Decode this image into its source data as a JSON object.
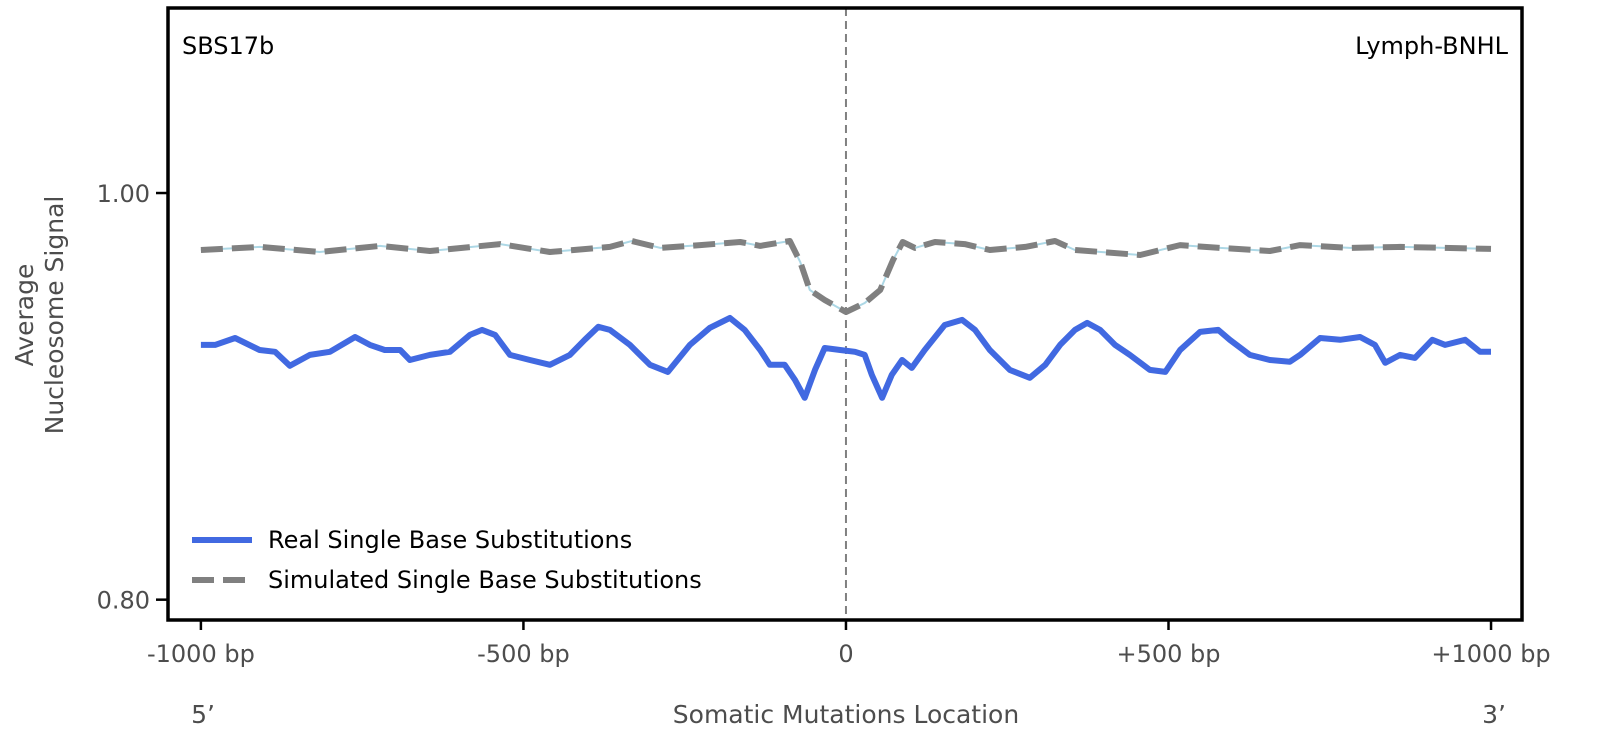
{
  "chart_data": {
    "type": "line",
    "title_left": "SBS17b",
    "title_right": "Lymph-BNHL",
    "xlabel": "Somatic Mutations Location",
    "ylabel": [
      "Average",
      "Nucleosome Signal"
    ],
    "xlim": [
      -1051,
      1048
    ],
    "ylim": [
      0.79,
      1.091
    ],
    "x_ticks": [
      {
        "value": -1000,
        "label": "-1000 bp"
      },
      {
        "value": -500,
        "label": "-500 bp"
      },
      {
        "value": 0,
        "label": "0"
      },
      {
        "value": 500,
        "label": "+500 bp"
      },
      {
        "value": 1000,
        "label": "+1000 bp"
      }
    ],
    "y_ticks": [
      {
        "value": 1.0,
        "label": "1.00"
      },
      {
        "value": 0.8,
        "label": "0.80"
      }
    ],
    "end_labels": {
      "left": "5’",
      "right": "3’"
    },
    "center_line": {
      "x": 0,
      "style": "dashed",
      "color": "#808080"
    },
    "grid": false,
    "legend_placement": "lower-left",
    "series": [
      {
        "name": "Real Single Base Substitutions",
        "color": "#4169e1",
        "style": "solid",
        "x": [
          -1000,
          -978,
          -947,
          -909,
          -885,
          -862,
          -831,
          -800,
          -761,
          -738,
          -715,
          -691,
          -676,
          -645,
          -614,
          -583,
          -564,
          -544,
          -521,
          -490,
          -459,
          -428,
          -405,
          -384,
          -366,
          -335,
          -304,
          -276,
          -242,
          -211,
          -180,
          -157,
          -133,
          -118,
          -95,
          -79,
          -64,
          -48,
          -33,
          -9,
          14,
          29,
          40,
          56,
          71,
          87,
          102,
          122,
          153,
          180,
          200,
          223,
          254,
          285,
          309,
          332,
          355,
          374,
          394,
          417,
          440,
          471,
          495,
          518,
          549,
          577,
          595,
          626,
          657,
          688,
          704,
          735,
          766,
          797,
          820,
          836,
          859,
          882,
          909,
          929,
          960,
          983,
          1000
        ],
        "y": [
          0.9253,
          0.9253,
          0.9287,
          0.9228,
          0.9219,
          0.915,
          0.9204,
          0.9219,
          0.9292,
          0.9253,
          0.9228,
          0.9228,
          0.9179,
          0.9204,
          0.9219,
          0.9302,
          0.9327,
          0.9302,
          0.9204,
          0.9179,
          0.9155,
          0.9204,
          0.9278,
          0.9342,
          0.9327,
          0.9253,
          0.9155,
          0.912,
          0.9253,
          0.9337,
          0.9386,
          0.9327,
          0.9228,
          0.9155,
          0.9155,
          0.9081,
          0.8993,
          0.913,
          0.9238,
          0.9228,
          0.9219,
          0.9204,
          0.9106,
          0.8993,
          0.9106,
          0.9179,
          0.914,
          0.9228,
          0.9351,
          0.9376,
          0.9327,
          0.9228,
          0.913,
          0.9091,
          0.9155,
          0.9253,
          0.9327,
          0.9361,
          0.9327,
          0.9253,
          0.9204,
          0.913,
          0.912,
          0.9228,
          0.9317,
          0.9327,
          0.9278,
          0.9204,
          0.9179,
          0.917,
          0.9204,
          0.9287,
          0.9278,
          0.9292,
          0.9253,
          0.9165,
          0.9204,
          0.9189,
          0.9278,
          0.9253,
          0.9278,
          0.9219,
          0.9219
        ]
      },
      {
        "name": "Simulated Single Base Substitutions",
        "color": "#808080",
        "underlay_color": "#add8e6",
        "style": "dashed",
        "x": [
          -1000,
          -909,
          -816,
          -722,
          -645,
          -536,
          -459,
          -366,
          -332,
          -288,
          -226,
          -164,
          -133,
          -87,
          -71,
          -56,
          -33,
          0,
          29,
          53,
          73,
          88,
          107,
          138,
          184,
          223,
          278,
          324,
          355,
          456,
          518,
          580,
          657,
          704,
          781,
          859,
          1000
        ],
        "y": [
          0.972,
          0.9735,
          0.971,
          0.974,
          0.9715,
          0.9749,
          0.971,
          0.9735,
          0.9764,
          0.973,
          0.9744,
          0.9759,
          0.974,
          0.9764,
          0.9661,
          0.9523,
          0.9474,
          0.9415,
          0.9459,
          0.9523,
          0.9671,
          0.9759,
          0.973,
          0.9759,
          0.9749,
          0.972,
          0.9735,
          0.9764,
          0.972,
          0.9695,
          0.9744,
          0.973,
          0.9715,
          0.9744,
          0.973,
          0.9735,
          0.9725
        ]
      }
    ]
  }
}
